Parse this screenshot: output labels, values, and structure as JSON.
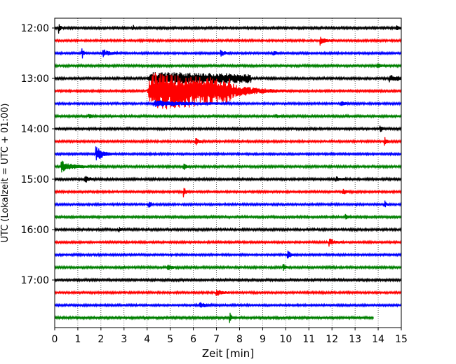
{
  "chart_data": {
    "type": "line",
    "title": "",
    "xlabel": "Zeit  [min]",
    "ylabel": "UTC (Lokalzeit = UTC + 01:00)",
    "xlim": [
      0,
      15
    ],
    "x_ticks": [
      "0",
      "1",
      "2",
      "3",
      "4",
      "5",
      "6",
      "7",
      "8",
      "9",
      "10",
      "11",
      "12",
      "13",
      "14",
      "15"
    ],
    "y_ticks": [
      {
        "label": "12:00",
        "trace": 0
      },
      {
        "label": "13:00",
        "trace": 4
      },
      {
        "label": "14:00",
        "trace": 8
      },
      {
        "label": "15:00",
        "trace": 12
      },
      {
        "label": "16:00",
        "trace": 16
      },
      {
        "label": "17:00",
        "trace": 20
      }
    ],
    "grid": "vertical dotted",
    "trace_colors": [
      "#000000",
      "#ff0000",
      "#0000ff",
      "#008000"
    ],
    "trace_interval_minutes": 15,
    "trace_count": 24,
    "last_trace_end_min": 13.8,
    "events": [
      {
        "trace": 0,
        "t": 0.2,
        "amp": 0.9,
        "dur": 0.15
      },
      {
        "trace": 0,
        "t": 3.4,
        "amp": 0.5,
        "dur": 0.1
      },
      {
        "trace": 0,
        "t": 14.8,
        "amp": 0.6,
        "dur": 0.3
      },
      {
        "trace": 1,
        "t": 11.5,
        "amp": 0.9,
        "dur": 0.5
      },
      {
        "trace": 2,
        "t": 1.2,
        "amp": 0.9,
        "dur": 0.2
      },
      {
        "trace": 2,
        "t": 2.1,
        "amp": 0.6,
        "dur": 0.8
      },
      {
        "trace": 2,
        "t": 7.2,
        "amp": 0.5,
        "dur": 0.5
      },
      {
        "trace": 2,
        "t": 9.5,
        "amp": 0.35,
        "dur": 0.4
      },
      {
        "trace": 3,
        "t": 14.0,
        "amp": 0.35,
        "dur": 0.4
      },
      {
        "trace": 4,
        "t": 4.0,
        "amp": 1.0,
        "dur": 4.5,
        "large": true
      },
      {
        "trace": 4,
        "t": 14.5,
        "amp": 0.7,
        "dur": 1.0
      },
      {
        "trace": 5,
        "t": 4.0,
        "amp": 3.2,
        "dur": 3.6,
        "large": true
      },
      {
        "trace": 5,
        "t": 7.6,
        "amp": 1.3,
        "dur": 3.0
      },
      {
        "trace": 6,
        "t": 4.3,
        "amp": 0.5,
        "dur": 4.0
      },
      {
        "trace": 6,
        "t": 12.4,
        "amp": 0.5,
        "dur": 0.4
      },
      {
        "trace": 7,
        "t": 1.5,
        "amp": 0.45,
        "dur": 0.3
      },
      {
        "trace": 7,
        "t": 9.6,
        "amp": 0.35,
        "dur": 0.3
      },
      {
        "trace": 8,
        "t": 14.1,
        "amp": 0.55,
        "dur": 0.3
      },
      {
        "trace": 9,
        "t": 6.1,
        "amp": 0.8,
        "dur": 0.3
      },
      {
        "trace": 9,
        "t": 14.3,
        "amp": 0.8,
        "dur": 0.2
      },
      {
        "trace": 10,
        "t": 1.8,
        "amp": 1.4,
        "dur": 0.8
      },
      {
        "trace": 11,
        "t": 0.3,
        "amp": 0.9,
        "dur": 1.4
      },
      {
        "trace": 11,
        "t": 5.6,
        "amp": 0.5,
        "dur": 0.3
      },
      {
        "trace": 12,
        "t": 1.3,
        "amp": 0.7,
        "dur": 0.5
      },
      {
        "trace": 12,
        "t": 12.2,
        "amp": 0.35,
        "dur": 0.5
      },
      {
        "trace": 13,
        "t": 5.6,
        "amp": 0.9,
        "dur": 0.2
      },
      {
        "trace": 13,
        "t": 12.5,
        "amp": 0.4,
        "dur": 0.4
      },
      {
        "trace": 14,
        "t": 4.1,
        "amp": 0.7,
        "dur": 0.2
      },
      {
        "trace": 14,
        "t": 14.3,
        "amp": 0.6,
        "dur": 0.2
      },
      {
        "trace": 15,
        "t": 12.6,
        "amp": 0.4,
        "dur": 0.3
      },
      {
        "trace": 16,
        "t": 2.8,
        "amp": 0.4,
        "dur": 0.2
      },
      {
        "trace": 17,
        "t": 11.9,
        "amp": 0.7,
        "dur": 0.6
      },
      {
        "trace": 18,
        "t": 10.1,
        "amp": 0.7,
        "dur": 0.3
      },
      {
        "trace": 19,
        "t": 4.9,
        "amp": 0.5,
        "dur": 0.5
      },
      {
        "trace": 19,
        "t": 9.9,
        "amp": 0.7,
        "dur": 0.3
      },
      {
        "trace": 21,
        "t": 7.0,
        "amp": 0.6,
        "dur": 0.6
      },
      {
        "trace": 22,
        "t": 6.3,
        "amp": 0.6,
        "dur": 0.6
      },
      {
        "trace": 23,
        "t": 7.6,
        "amp": 0.7,
        "dur": 0.2
      }
    ]
  }
}
